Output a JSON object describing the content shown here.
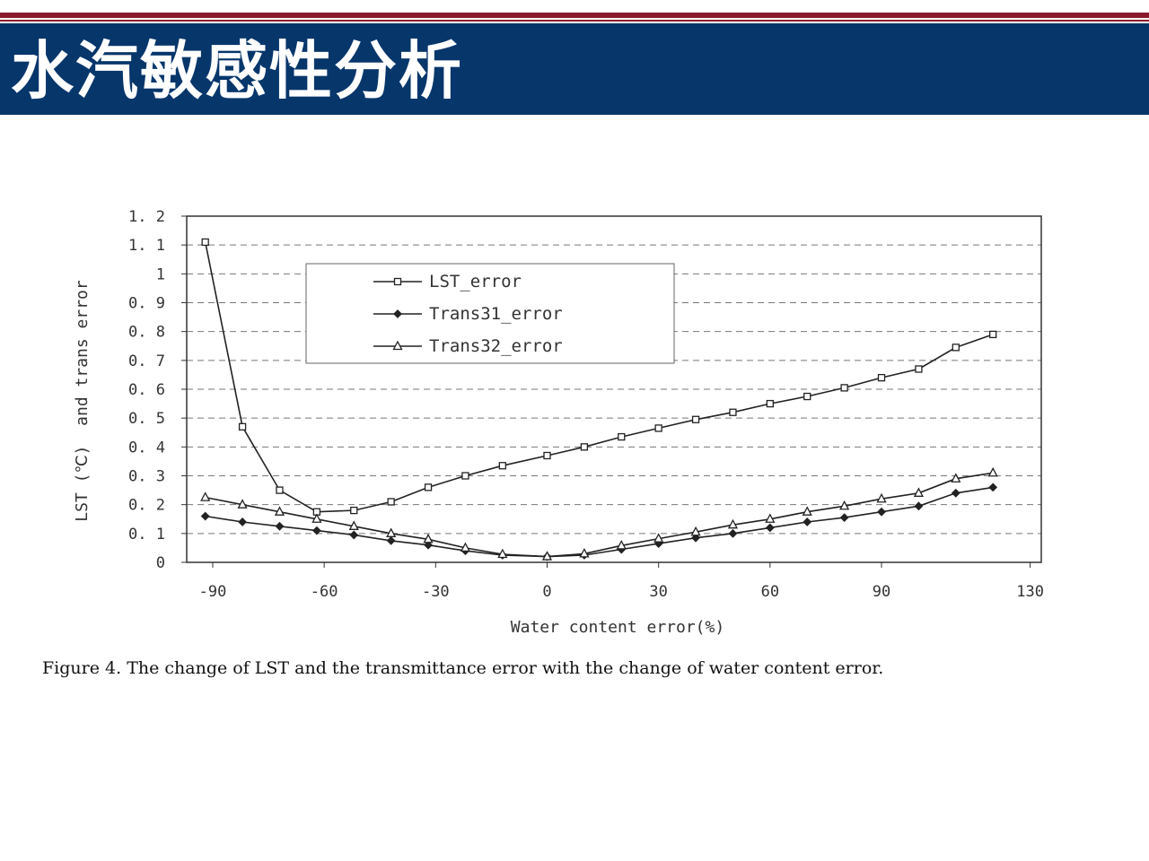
{
  "slide": {
    "title": "水汽敏感性分析"
  },
  "caption": "Figure 4.   The change of LST and the transmittance error with the change of water content error.",
  "colors": {
    "banner": "#07366b",
    "rule": "#8b1a2c",
    "line": "#333333"
  },
  "chart_data": {
    "type": "line",
    "xlabel": "Water content error(%)",
    "ylabel": "LST (℃)  and trans error",
    "xlim": [
      -97,
      133
    ],
    "ylim": [
      0,
      1.2
    ],
    "xticks": [
      -90,
      -60,
      -30,
      0,
      30,
      60,
      90,
      130
    ],
    "yticks": [
      0,
      0.1,
      0.2,
      0.3,
      0.4,
      0.5,
      0.6,
      0.7,
      0.8,
      0.9,
      1,
      1.1,
      1.2
    ],
    "ytick_labels": [
      "0",
      "0. 1",
      "0. 2",
      "0. 3",
      "0. 4",
      "0. 5",
      "0. 6",
      "0. 7",
      "0. 8",
      "0. 9",
      "1",
      "1. 1",
      "1. 2"
    ],
    "grid": "horizontal dashed",
    "legend_position": "upper-left",
    "series": [
      {
        "name": "LST_error",
        "marker": "square",
        "x": [
          -92,
          -82,
          -72,
          -62,
          -52,
          -42,
          -32,
          -22,
          -12,
          0,
          10,
          20,
          30,
          40,
          50,
          60,
          70,
          80,
          90,
          100,
          110,
          120
        ],
        "y": [
          1.11,
          0.47,
          0.25,
          0.175,
          0.18,
          0.21,
          0.26,
          0.3,
          0.335,
          0.37,
          0.4,
          0.435,
          0.465,
          0.495,
          0.52,
          0.55,
          0.575,
          0.605,
          0.64,
          0.67,
          0.745,
          0.79
        ]
      },
      {
        "name": "Trans31_error",
        "marker": "diamond",
        "x": [
          -92,
          -82,
          -72,
          -62,
          -52,
          -42,
          -32,
          -22,
          -12,
          0,
          10,
          20,
          30,
          40,
          50,
          60,
          70,
          80,
          90,
          100,
          110,
          120
        ],
        "y": [
          0.16,
          0.14,
          0.125,
          0.11,
          0.095,
          0.075,
          0.06,
          0.04,
          0.025,
          0.02,
          0.025,
          0.045,
          0.065,
          0.085,
          0.1,
          0.12,
          0.14,
          0.155,
          0.175,
          0.195,
          0.24,
          0.26
        ]
      },
      {
        "name": "Trans32_error",
        "marker": "triangle",
        "x": [
          -92,
          -82,
          -72,
          -62,
          -52,
          -42,
          -32,
          -22,
          -12,
          0,
          10,
          20,
          30,
          40,
          50,
          60,
          70,
          80,
          90,
          100,
          110,
          120
        ],
        "y": [
          0.225,
          0.2,
          0.175,
          0.15,
          0.125,
          0.1,
          0.08,
          0.05,
          0.028,
          0.02,
          0.03,
          0.058,
          0.082,
          0.105,
          0.13,
          0.15,
          0.175,
          0.195,
          0.22,
          0.24,
          0.29,
          0.31
        ]
      }
    ]
  }
}
